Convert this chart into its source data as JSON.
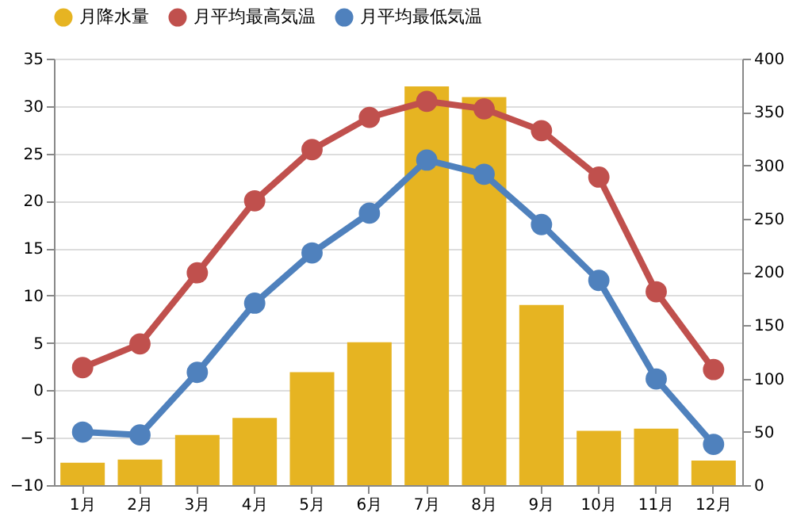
{
  "chart_data": {
    "type": "line",
    "categories": [
      "1月",
      "2月",
      "3月",
      "4月",
      "5月",
      "6月",
      "7月",
      "8月",
      "9月",
      "10月",
      "11月",
      "12月"
    ],
    "series": [
      {
        "name": "月降水量",
        "type": "bar",
        "axis": "y2",
        "color": "#e6b422",
        "values": [
          21,
          24,
          47,
          63,
          106,
          134,
          374,
          364,
          169,
          51,
          53,
          23
        ]
      },
      {
        "name": "月平均最高気温",
        "color": "#c0504d",
        "values": [
          2.4,
          4.9,
          12.4,
          20.0,
          25.4,
          28.8,
          30.5,
          29.7,
          27.4,
          22.5,
          10.4,
          2.2
        ]
      },
      {
        "name": "月平均最低気温",
        "color": "#4f81bd",
        "values": [
          -4.4,
          -4.7,
          1.9,
          9.2,
          14.5,
          18.7,
          24.3,
          22.8,
          17.5,
          11.6,
          1.2,
          -5.7
        ]
      }
    ],
    "ylim": [
      -10,
      35
    ],
    "yticks": [
      -10,
      -5,
      0,
      5,
      10,
      15,
      20,
      25,
      30,
      35
    ],
    "y2lim": [
      0,
      400
    ],
    "y2ticks": [
      0,
      50,
      100,
      150,
      200,
      250,
      300,
      350,
      400
    ],
    "grid": "y",
    "legend": "top",
    "marker": "circle",
    "line_style": "solid"
  }
}
